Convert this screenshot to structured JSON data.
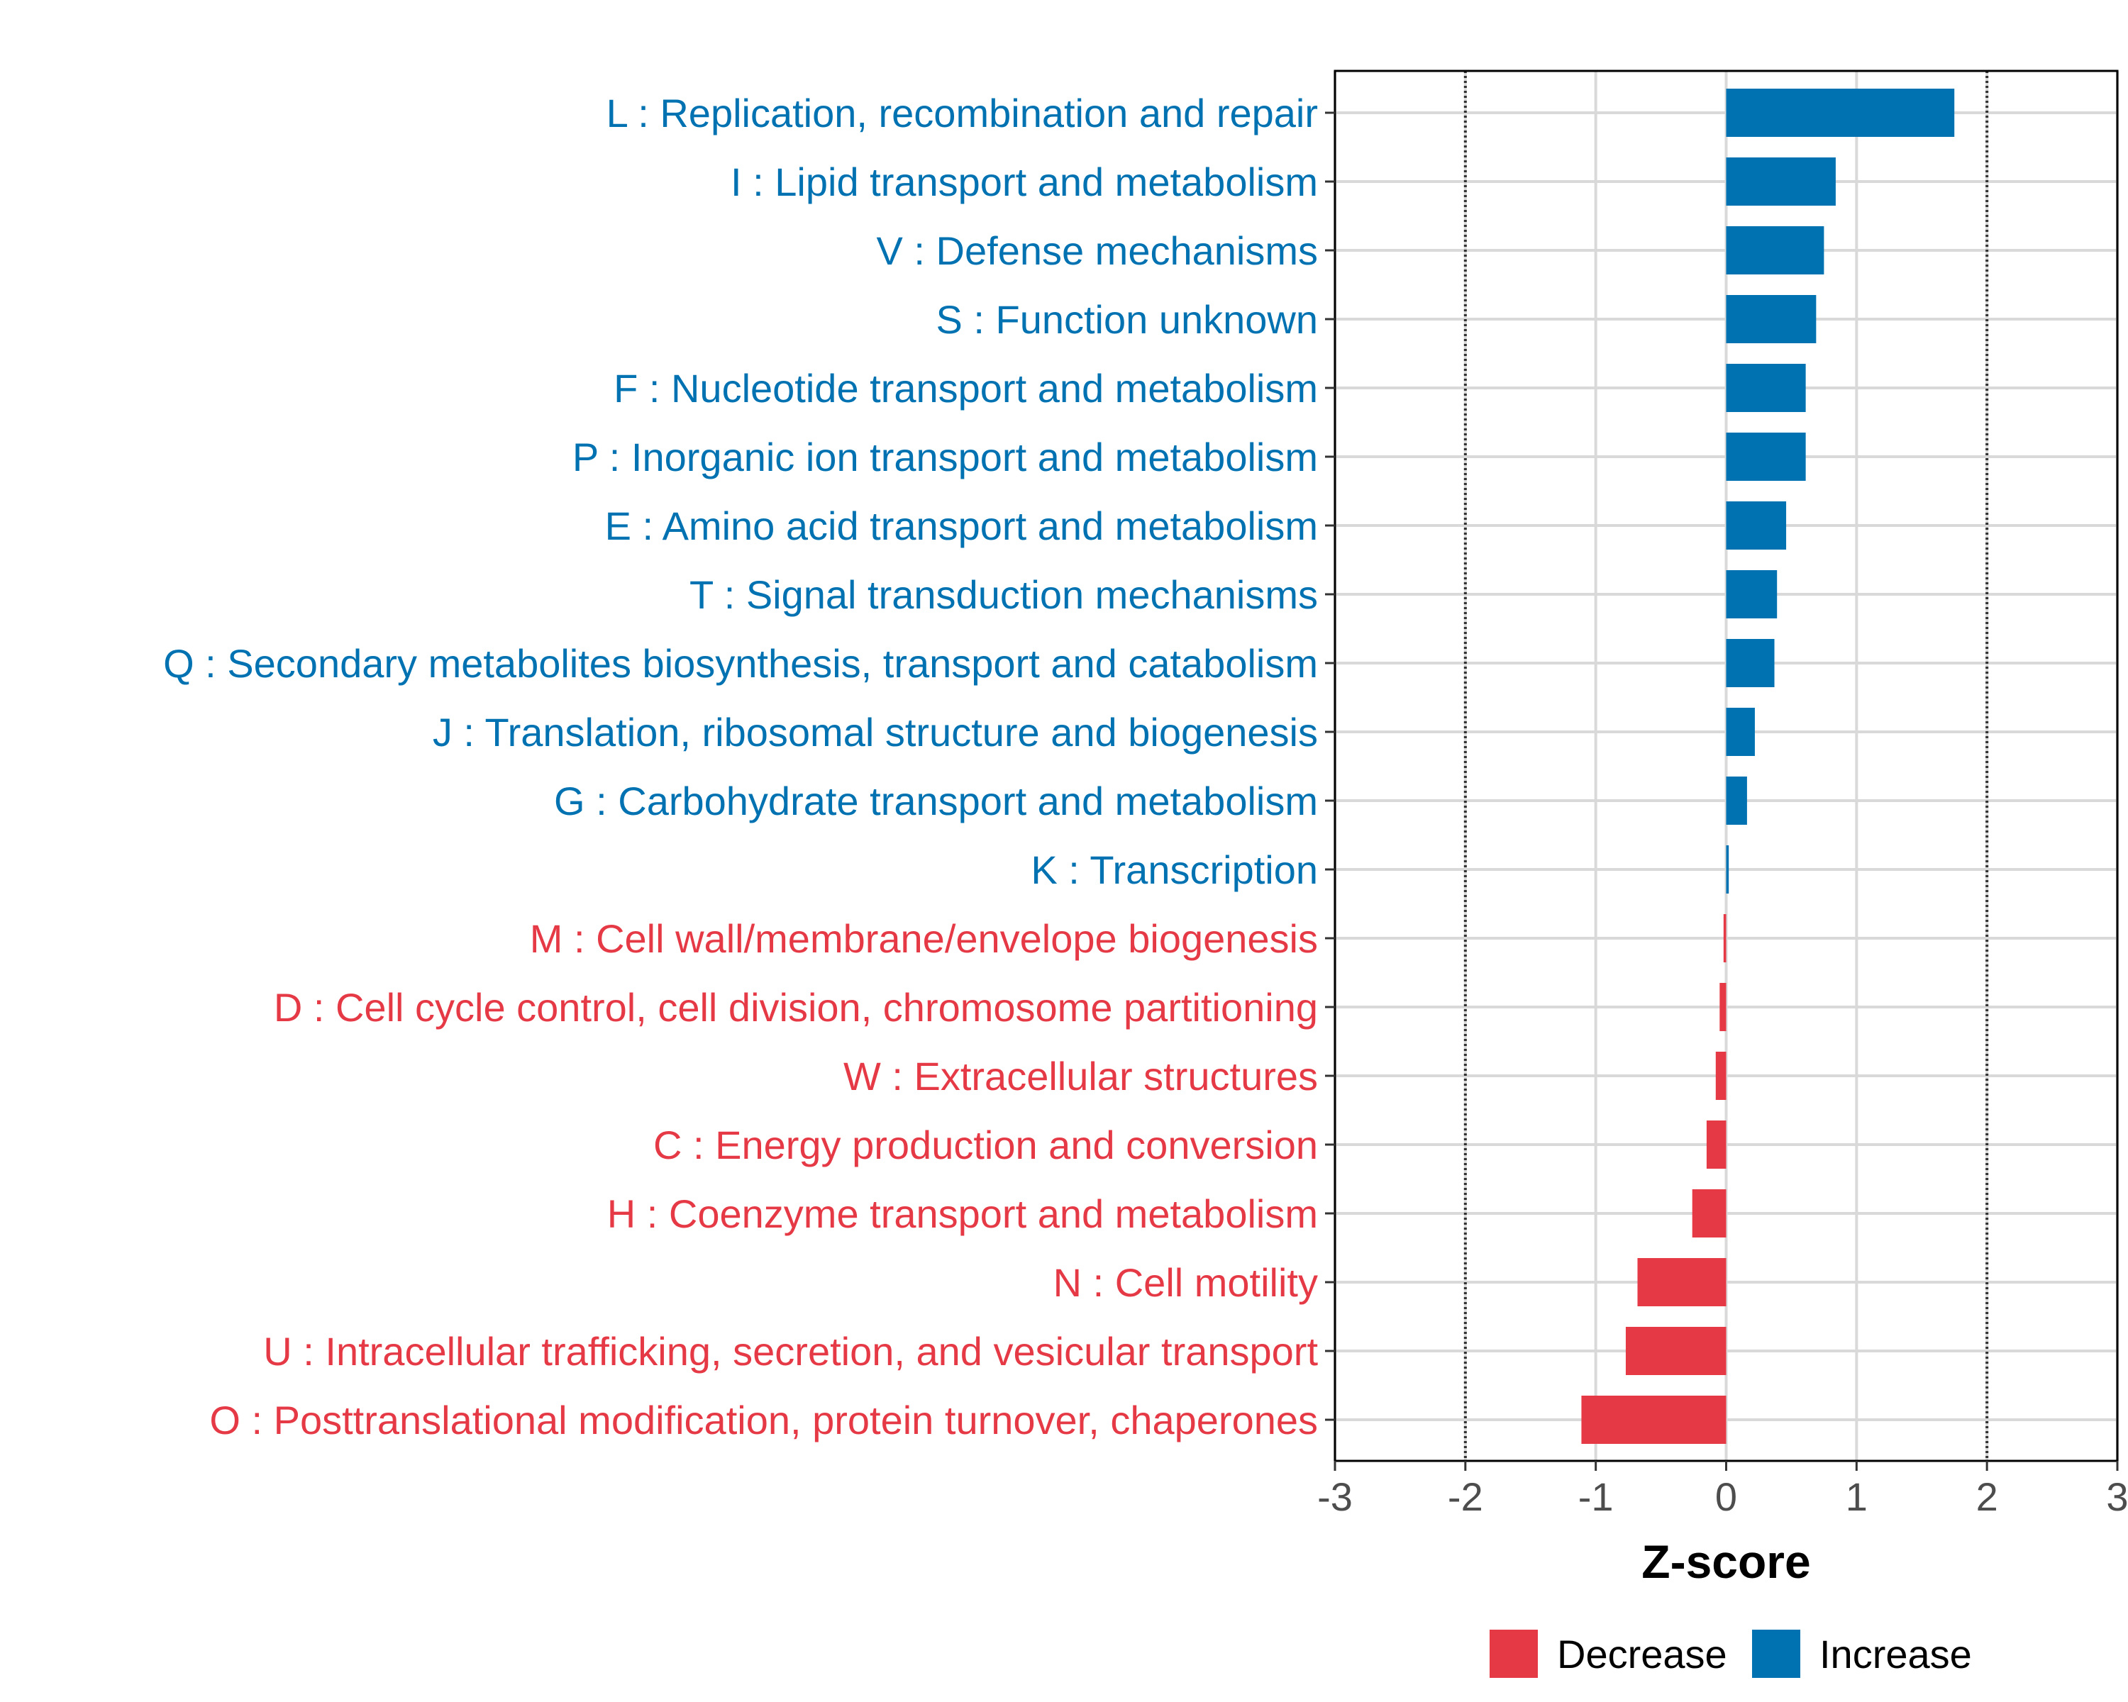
{
  "chart_data": {
    "type": "bar",
    "orientation": "horizontal",
    "xlabel": "Z-score",
    "xlim": [
      -3,
      3
    ],
    "xticks": [
      -3,
      -2,
      -1,
      0,
      1,
      2,
      3
    ],
    "reference_lines": [
      -2,
      2
    ],
    "grid": true,
    "colors": {
      "Increase": "#0072b2",
      "Decrease": "#e63946"
    },
    "categories": [
      "L : Replication, recombination and repair",
      "I : Lipid transport and metabolism",
      "V : Defense mechanisms",
      "S : Function unknown",
      "F : Nucleotide transport and metabolism",
      "P : Inorganic ion transport and metabolism",
      "E : Amino acid transport and metabolism",
      "T : Signal transduction mechanisms",
      "Q : Secondary metabolites biosynthesis, transport and catabolism",
      "J : Translation, ribosomal structure and biogenesis",
      "G : Carbohydrate transport and metabolism",
      "K : Transcription",
      "M : Cell wall/membrane/envelope biogenesis",
      "D : Cell cycle control, cell division, chromosome partitioning",
      "W : Extracellular structures",
      "C : Energy production and conversion",
      "H : Coenzyme transport and metabolism",
      "N : Cell motility",
      "U : Intracellular trafficking, secretion, and vesicular transport",
      "O : Posttranslational modification, protein turnover, chaperones"
    ],
    "values": [
      1.75,
      0.84,
      0.75,
      0.69,
      0.61,
      0.61,
      0.46,
      0.39,
      0.37,
      0.22,
      0.16,
      0.02,
      -0.02,
      -0.05,
      -0.08,
      -0.15,
      -0.26,
      -0.68,
      -0.77,
      -1.11
    ],
    "direction": [
      "Increase",
      "Increase",
      "Increase",
      "Increase",
      "Increase",
      "Increase",
      "Increase",
      "Increase",
      "Increase",
      "Increase",
      "Increase",
      "Increase",
      "Decrease",
      "Decrease",
      "Decrease",
      "Decrease",
      "Decrease",
      "Decrease",
      "Decrease",
      "Decrease"
    ],
    "legend": [
      "Decrease",
      "Increase"
    ],
    "legend_position": "bottom"
  }
}
